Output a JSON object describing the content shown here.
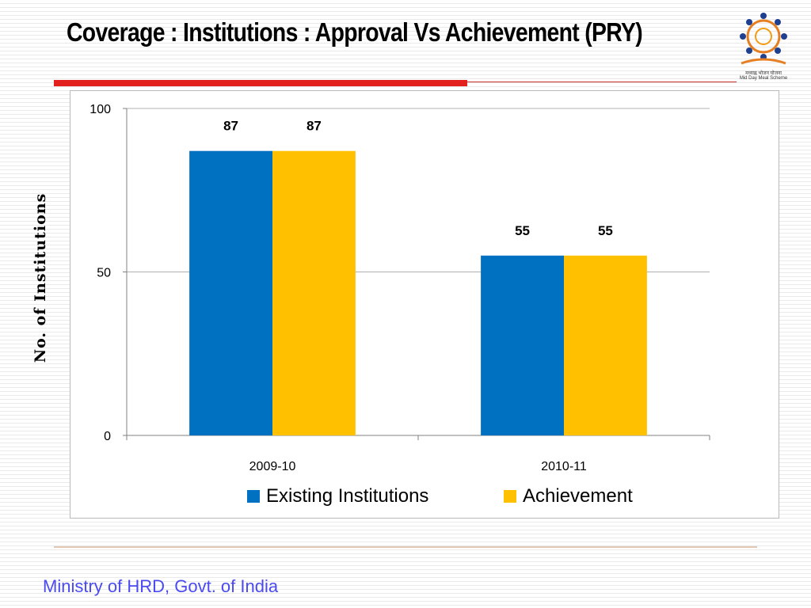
{
  "title": "Coverage : Institutions : Approval Vs Achievement (PRY)",
  "logo": {
    "icon": "mid-day-meal-logo-icon",
    "text_hindi": "मध्याह्न भोजन योजना",
    "text_english": "Mid Day Meal Scheme"
  },
  "colors": {
    "accent_red": "#e2201e",
    "existing": "#0070c0",
    "achievement": "#ffc000",
    "footer_text": "#4a4af0"
  },
  "footer": "Ministry of HRD, Govt. of India",
  "chart_data": {
    "type": "bar",
    "title": "",
    "xlabel": "",
    "ylabel": "No. of Institutions",
    "categories": [
      "2009-10",
      "2010-11"
    ],
    "series": [
      {
        "name": "Existing Institutions",
        "values": [
          87,
          55
        ],
        "color": "#0070c0"
      },
      {
        "name": "Achievement",
        "values": [
          87,
          55
        ],
        "color": "#ffc000"
      }
    ],
    "ylim": [
      0,
      100
    ],
    "yticks": [
      0,
      50,
      100
    ],
    "grid": true,
    "legend": "bottom",
    "data_labels": true
  }
}
